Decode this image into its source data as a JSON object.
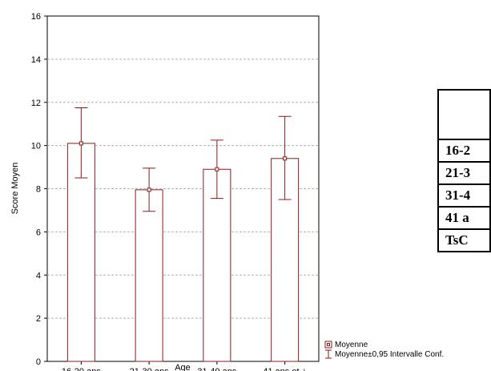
{
  "chart_data": {
    "type": "bar",
    "xlabel": "Age",
    "ylabel": "Score Moyen",
    "categories": [
      "16-20 ans",
      "21-30 ans",
      "31-40 ans",
      "41 ans et +"
    ],
    "series": [
      {
        "name": "Moyenne",
        "values": [
          10.1,
          7.95,
          8.9,
          9.4
        ],
        "ci_low": [
          8.5,
          6.95,
          7.55,
          7.5
        ],
        "ci_high": [
          11.75,
          8.95,
          10.25,
          11.35
        ]
      }
    ],
    "ylim": [
      0,
      16
    ],
    "yticks": [
      "0",
      "2",
      "4",
      "6",
      "8",
      "10",
      "12",
      "14",
      "16"
    ],
    "grid": true,
    "legend": {
      "position": "bottom-right",
      "entries": [
        "Moyenne",
        "Moyenne±0,95 Intervalle Conf."
      ]
    },
    "colors": {
      "bar": "#8b1a1a",
      "grid": "#b0b0b0"
    }
  },
  "side_table": {
    "rows": [
      "16-2",
      "21-3",
      "31-4",
      "41 a",
      "TsC"
    ]
  }
}
